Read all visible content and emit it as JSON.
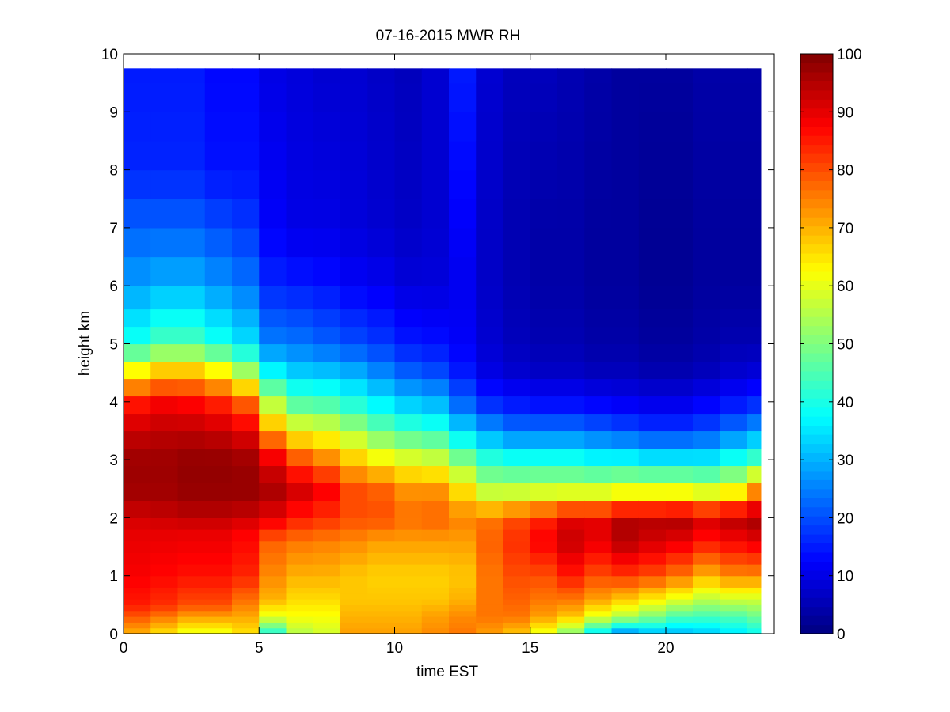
{
  "chart_data": {
    "type": "heatmap",
    "title": "07-16-2015 MWR RH",
    "xlabel": "time EST",
    "ylabel": "height km",
    "xlim": [
      0,
      24
    ],
    "ylim": [
      0,
      10
    ],
    "xticks": [
      "0",
      "5",
      "10",
      "15",
      "20"
    ],
    "yticks": [
      "0",
      "1",
      "2",
      "3",
      "4",
      "5",
      "6",
      "7",
      "8",
      "9",
      "10"
    ],
    "colorbar": {
      "colormap": "jet",
      "range": [
        0,
        100
      ],
      "ticks": [
        "0",
        "10",
        "20",
        "30",
        "40",
        "50",
        "60",
        "70",
        "80",
        "90",
        "100"
      ]
    },
    "data_extent": {
      "x": [
        0,
        23.5
      ],
      "y": [
        0,
        9.75
      ]
    },
    "time_hours": [
      0.0,
      1.0,
      2.0,
      3.0,
      4.0,
      5.0,
      6.0,
      7.0,
      8.0,
      9.0,
      10.0,
      11.0,
      12.0,
      13.0,
      14.0,
      15.0,
      16.0,
      17.0,
      18.0,
      19.0,
      20.0,
      21.0,
      22.0,
      23.0
    ],
    "height_km": [
      0.0,
      0.1,
      0.2,
      0.3,
      0.4,
      0.5,
      0.6,
      0.7,
      0.8,
      1.0,
      1.2,
      1.4,
      1.6,
      1.8,
      2.0,
      2.3,
      2.6,
      2.9,
      3.2,
      3.5,
      3.8,
      4.1,
      4.4,
      4.7,
      5.0,
      5.3,
      5.6,
      6.0,
      6.5,
      7.0,
      7.5,
      8.0,
      8.5,
      9.0,
      9.5
    ],
    "profiles": [
      {
        "time": 0.0,
        "h": [
          0,
          0.5,
          1.0,
          1.8,
          2.0,
          2.5,
          3.0,
          3.5,
          4.0,
          4.5,
          5.0,
          6.0,
          7.0,
          8.0,
          9.75
        ],
        "rh": [
          70,
          85,
          88,
          90,
          92,
          97,
          97,
          93,
          85,
          65,
          40,
          28,
          22,
          16,
          15
        ]
      },
      {
        "time": 1.0,
        "h": [
          0,
          0.5,
          1.0,
          1.8,
          2.0,
          2.5,
          3.0,
          3.5,
          4.0,
          4.5,
          5.0,
          6.0,
          7.0,
          8.0,
          9.75
        ],
        "rh": [
          65,
          83,
          87,
          90,
          93,
          97,
          97,
          94,
          88,
          70,
          45,
          30,
          22,
          16,
          15
        ]
      },
      {
        "time": 2.0,
        "h": [
          0,
          0.5,
          1.0,
          1.8,
          2.0,
          2.5,
          3.0,
          3.5,
          4.0,
          4.5,
          5.0,
          6.0,
          7.0,
          8.0,
          9.75
        ],
        "rh": [
          60,
          80,
          86,
          90,
          94,
          98,
          98,
          94,
          87,
          70,
          45,
          30,
          22,
          16,
          15
        ]
      },
      {
        "time": 3.0,
        "h": [
          0,
          0.5,
          1.0,
          1.8,
          2.0,
          2.5,
          3.0,
          3.5,
          4.0,
          4.5,
          5.0,
          6.0,
          7.0,
          8.0,
          9.75
        ],
        "rh": [
          60,
          80,
          86,
          90,
          94,
          98,
          98,
          93,
          84,
          65,
          40,
          27,
          20,
          14,
          13
        ]
      },
      {
        "time": 4.0,
        "h": [
          0,
          0.5,
          1.0,
          1.8,
          2.0,
          2.5,
          3.0,
          3.5,
          4.0,
          4.5,
          5.0,
          6.0,
          7.0,
          8.0,
          9.75
        ],
        "rh": [
          65,
          75,
          84,
          88,
          93,
          98,
          97,
          90,
          78,
          55,
          35,
          24,
          18,
          14,
          13
        ]
      },
      {
        "time": 5.0,
        "h": [
          0,
          0.3,
          0.6,
          1.0,
          1.6,
          2.0,
          2.5,
          3.0,
          3.5,
          4.0,
          4.5,
          5.0,
          6.0,
          7.0,
          9.75
        ],
        "rh": [
          40,
          60,
          70,
          74,
          78,
          90,
          96,
          90,
          72,
          55,
          38,
          25,
          16,
          12,
          10
        ]
      },
      {
        "time": 6.0,
        "h": [
          0,
          0.3,
          0.6,
          1.0,
          1.6,
          2.0,
          2.5,
          3.0,
          3.5,
          4.0,
          4.5,
          5.0,
          6.0,
          7.0,
          9.75
        ],
        "rh": [
          55,
          62,
          66,
          70,
          76,
          85,
          92,
          80,
          62,
          45,
          33,
          24,
          15,
          10,
          9
        ]
      },
      {
        "time": 7.0,
        "h": [
          0,
          0.3,
          0.6,
          1.0,
          1.6,
          2.0,
          2.5,
          3.0,
          3.5,
          4.0,
          4.5,
          5.0,
          6.0,
          7.0,
          9.75
        ],
        "rh": [
          58,
          62,
          66,
          70,
          75,
          83,
          88,
          75,
          60,
          44,
          32,
          22,
          14,
          10,
          8
        ]
      },
      {
        "time": 8.0,
        "h": [
          0,
          0.3,
          0.6,
          1.0,
          1.6,
          2.0,
          2.5,
          3.0,
          3.5,
          4.0,
          4.5,
          5.0,
          6.0,
          7.0,
          9.75
        ],
        "rh": [
          72,
          70,
          68,
          68,
          74,
          80,
          80,
          68,
          54,
          40,
          30,
          20,
          12,
          9,
          8
        ]
      },
      {
        "time": 9.0,
        "h": [
          0,
          0.3,
          0.6,
          1.0,
          1.6,
          2.0,
          2.5,
          3.0,
          3.5,
          4.0,
          4.5,
          5.0,
          6.0,
          7.0,
          9.75
        ],
        "rh": [
          72,
          70,
          68,
          67,
          72,
          80,
          78,
          63,
          48,
          36,
          26,
          18,
          11,
          8,
          7
        ]
      },
      {
        "time": 10.0,
        "h": [
          0,
          0.3,
          0.6,
          1.0,
          1.6,
          2.0,
          2.5,
          3.0,
          3.5,
          4.0,
          4.5,
          5.0,
          6.0,
          7.0,
          9.75
        ],
        "rh": [
          72,
          70,
          68,
          67,
          72,
          77,
          73,
          60,
          44,
          32,
          22,
          15,
          9,
          7,
          6
        ]
      },
      {
        "time": 11.0,
        "h": [
          0,
          0.3,
          0.6,
          1.0,
          1.6,
          2.0,
          2.5,
          3.0,
          3.5,
          4.0,
          4.5,
          5.0,
          6.0,
          7.0,
          9.75
        ],
        "rh": [
          74,
          72,
          68,
          67,
          72,
          78,
          73,
          58,
          42,
          30,
          20,
          14,
          9,
          8,
          8
        ]
      },
      {
        "time": 12.0,
        "h": [
          0,
          0.3,
          0.6,
          1.0,
          1.6,
          2.0,
          2.5,
          3.0,
          3.5,
          4.0,
          4.5,
          5.0,
          6.0,
          7.0,
          9.75
        ],
        "rh": [
          76,
          74,
          70,
          68,
          72,
          75,
          65,
          50,
          34,
          22,
          15,
          12,
          11,
          12,
          15
        ]
      },
      {
        "time": 13.0,
        "h": [
          0,
          0.3,
          0.6,
          1.0,
          1.6,
          2.0,
          2.5,
          3.0,
          3.5,
          4.0,
          4.5,
          5.0,
          6.0,
          7.0,
          9.75
        ],
        "rh": [
          72,
          76,
          76,
          76,
          78,
          76,
          55,
          42,
          28,
          16,
          10,
          8,
          7,
          7,
          8
        ]
      },
      {
        "time": 14.0,
        "h": [
          0,
          0.3,
          0.6,
          1.0,
          1.6,
          2.0,
          2.5,
          3.0,
          3.5,
          4.0,
          4.5,
          5.0,
          6.0,
          7.0,
          9.75
        ],
        "rh": [
          68,
          76,
          78,
          80,
          83,
          80,
          55,
          40,
          24,
          14,
          8,
          6,
          5,
          5,
          6
        ]
      },
      {
        "time": 15.0,
        "h": [
          0,
          0.3,
          0.6,
          1.0,
          1.6,
          2.0,
          2.5,
          3.0,
          3.5,
          4.0,
          4.5,
          5.0,
          6.0,
          7.0,
          9.75
        ],
        "rh": [
          60,
          72,
          76,
          80,
          88,
          84,
          56,
          40,
          24,
          13,
          7,
          5,
          4,
          4,
          6
        ]
      },
      {
        "time": 16.0,
        "h": [
          0,
          0.3,
          0.6,
          1.0,
          1.6,
          2.0,
          2.5,
          3.0,
          3.5,
          4.0,
          4.5,
          5.0,
          6.0,
          7.0,
          9.75
        ],
        "rh": [
          50,
          68,
          76,
          85,
          93,
          90,
          56,
          40,
          24,
          13,
          7,
          5,
          4,
          4,
          5
        ]
      },
      {
        "time": 17.0,
        "h": [
          0,
          0.3,
          0.6,
          1.0,
          1.6,
          2.0,
          2.5,
          3.0,
          3.5,
          4.0,
          4.5,
          5.0,
          6.0,
          7.0,
          9.75
        ],
        "rh": [
          35,
          60,
          72,
          80,
          90,
          90,
          56,
          38,
          22,
          12,
          6,
          4,
          3,
          3,
          4
        ]
      },
      {
        "time": 18.0,
        "h": [
          0,
          0.3,
          0.6,
          1.0,
          1.6,
          2.0,
          2.5,
          3.0,
          3.5,
          4.0,
          4.5,
          5.0,
          6.0,
          7.0,
          9.75
        ],
        "rh": [
          25,
          55,
          68,
          82,
          95,
          95,
          58,
          38,
          20,
          11,
          6,
          4,
          3,
          3,
          3
        ]
      },
      {
        "time": 19.0,
        "h": [
          0,
          0.3,
          0.6,
          1.0,
          1.6,
          2.0,
          2.5,
          3.0,
          3.5,
          4.0,
          4.5,
          5.0,
          6.0,
          7.0,
          9.75
        ],
        "rh": [
          30,
          50,
          64,
          80,
          92,
          95,
          58,
          36,
          18,
          10,
          5,
          3,
          2,
          2,
          3
        ]
      },
      {
        "time": 20.0,
        "h": [
          0,
          0.3,
          0.6,
          1.0,
          1.6,
          2.0,
          2.5,
          3.0,
          3.5,
          4.0,
          4.5,
          5.0,
          6.0,
          7.0,
          9.75
        ],
        "rh": [
          30,
          45,
          60,
          76,
          90,
          96,
          58,
          36,
          18,
          10,
          5,
          3,
          2,
          2,
          3
        ]
      },
      {
        "time": 21.0,
        "h": [
          0,
          0.3,
          0.6,
          1.0,
          1.6,
          2.0,
          2.5,
          3.0,
          3.5,
          4.0,
          4.5,
          5.0,
          6.0,
          7.0,
          9.75
        ],
        "rh": [
          32,
          44,
          56,
          70,
          86,
          92,
          56,
          36,
          20,
          12,
          6,
          4,
          3,
          3,
          4
        ]
      },
      {
        "time": 22.0,
        "h": [
          0,
          0.3,
          0.6,
          1.0,
          1.6,
          2.0,
          2.5,
          3.0,
          3.5,
          4.0,
          4.5,
          5.0,
          6.0,
          7.0,
          9.75
        ],
        "rh": [
          35,
          45,
          58,
          74,
          88,
          95,
          60,
          40,
          24,
          14,
          8,
          5,
          3,
          3,
          4
        ]
      },
      {
        "time": 23.0,
        "h": [
          0,
          0.3,
          0.6,
          1.0,
          1.6,
          2.0,
          2.5,
          3.0,
          3.5,
          4.0,
          4.5,
          5.0,
          6.0,
          7.0,
          9.75
        ],
        "rh": [
          38,
          48,
          58,
          74,
          90,
          97,
          72,
          44,
          28,
          16,
          9,
          5,
          3,
          3,
          4
        ]
      }
    ],
    "grid": false,
    "legend": "none"
  }
}
